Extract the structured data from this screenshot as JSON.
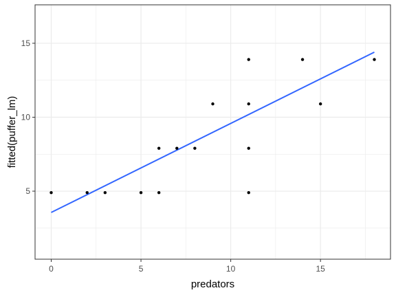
{
  "chart_data": {
    "type": "scatter",
    "title": "",
    "xlabel": "predators",
    "ylabel": "fitted(puffer_lm)",
    "xlim": [
      -0.9,
      18.9
    ],
    "ylim": [
      0.4,
      17.6
    ],
    "x_ticks": [
      0,
      5,
      10,
      15
    ],
    "y_ticks": [
      5,
      10,
      15
    ],
    "grid": true,
    "legend": "none",
    "points": [
      {
        "x": 0,
        "y": 4.9
      },
      {
        "x": 2,
        "y": 4.9
      },
      {
        "x": 3,
        "y": 4.9
      },
      {
        "x": 5,
        "y": 4.9
      },
      {
        "x": 6,
        "y": 4.9
      },
      {
        "x": 6,
        "y": 7.9
      },
      {
        "x": 7,
        "y": 7.9
      },
      {
        "x": 8,
        "y": 7.9
      },
      {
        "x": 9,
        "y": 10.9
      },
      {
        "x": 11,
        "y": 4.9
      },
      {
        "x": 11,
        "y": 7.9
      },
      {
        "x": 11,
        "y": 10.9
      },
      {
        "x": 11,
        "y": 13.9
      },
      {
        "x": 14,
        "y": 13.9
      },
      {
        "x": 15,
        "y": 10.9
      },
      {
        "x": 18,
        "y": 13.9
      }
    ],
    "fit_line": {
      "x": [
        0,
        18
      ],
      "y": [
        3.56,
        14.4
      ]
    },
    "colors": {
      "points": "#000000",
      "line": "#3366ff",
      "grid": "#ebebeb",
      "panel_border": "#333333"
    }
  }
}
